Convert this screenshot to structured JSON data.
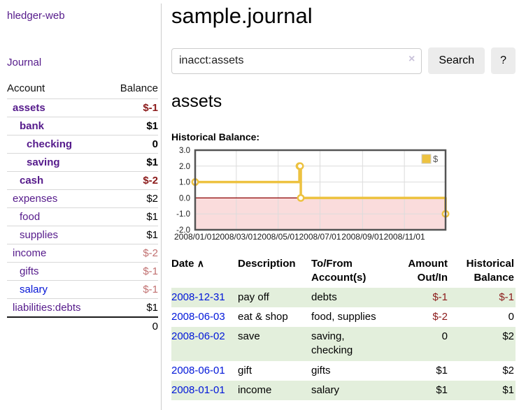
{
  "colors": {
    "link_purple": "#551a8b",
    "link_blue": "#0414d6",
    "date_link_blue": "#0016d9",
    "negative_strong": "#8b1a1a",
    "negative_dim": "#c17070",
    "row_green": "#e3efdc",
    "accent_gold": "#edc240",
    "button_gray": "#ececec"
  },
  "sidebar": {
    "app_title": "hledger-web",
    "nav": {
      "journal_label": "Journal"
    },
    "accounts_table": {
      "headers": {
        "account": "Account",
        "balance": "Balance"
      },
      "rows": [
        {
          "name": "assets",
          "indent": 1,
          "bold": true,
          "blue": false,
          "balance": "$-1",
          "balance_style": "neg-strong"
        },
        {
          "name": "bank",
          "indent": 2,
          "bold": true,
          "blue": false,
          "balance": "$1",
          "balance_style": "strong"
        },
        {
          "name": "checking",
          "indent": 3,
          "bold": true,
          "blue": false,
          "balance": "0",
          "balance_style": "strong"
        },
        {
          "name": "saving",
          "indent": 3,
          "bold": true,
          "blue": false,
          "balance": "$1",
          "balance_style": "strong"
        },
        {
          "name": "cash",
          "indent": 2,
          "bold": true,
          "blue": false,
          "balance": "$-2",
          "balance_style": "neg-strong"
        },
        {
          "name": "expenses",
          "indent": 1,
          "bold": false,
          "blue": false,
          "balance": "$2",
          "balance_style": "plain"
        },
        {
          "name": "food",
          "indent": 2,
          "bold": false,
          "blue": false,
          "balance": "$1",
          "balance_style": "plain"
        },
        {
          "name": "supplies",
          "indent": 2,
          "bold": false,
          "blue": false,
          "balance": "$1",
          "balance_style": "plain"
        },
        {
          "name": "income",
          "indent": 1,
          "bold": false,
          "blue": false,
          "balance": "$-2",
          "balance_style": "neg-dim"
        },
        {
          "name": "gifts",
          "indent": 2,
          "bold": false,
          "blue": false,
          "balance": "$-1",
          "balance_style": "neg-dim"
        },
        {
          "name": "salary",
          "indent": 2,
          "bold": false,
          "blue": true,
          "balance": "$-1",
          "balance_style": "neg-dim"
        },
        {
          "name": "liabilities:debts",
          "indent": 1,
          "bold": false,
          "blue": false,
          "balance": "$1",
          "balance_style": "plain"
        }
      ],
      "total": "0"
    }
  },
  "header": {
    "title": "sample.journal"
  },
  "search": {
    "value": "inacct:assets",
    "clear_icon": "×",
    "button_label": "Search",
    "help_label": "?"
  },
  "account_page": {
    "heading": "assets",
    "chart_label": "Historical Balance:"
  },
  "chart_data": {
    "type": "line",
    "step": true,
    "title": "Historical Balance",
    "legend": {
      "position": "top-right",
      "entries": [
        "$"
      ]
    },
    "xlim": [
      "2008-01-01",
      "2008-12-31"
    ],
    "ylim": [
      -2,
      3
    ],
    "x_ticks": [
      "2008/01/01",
      "2008/03/01",
      "2008/05/01",
      "2008/07/01",
      "2008/09/01",
      "2008/11/01"
    ],
    "y_ticks": [
      3.0,
      2.0,
      1.0,
      0.0,
      -1.0,
      -2.0
    ],
    "grid": true,
    "negative_fill": "#fadcdc",
    "zero_line_color": "#8b0000",
    "series": [
      {
        "name": "$",
        "color": "#edc240",
        "points": [
          [
            "2008-01-01",
            1
          ],
          [
            "2008-06-01",
            2
          ],
          [
            "2008-06-02",
            2
          ],
          [
            "2008-06-03",
            0
          ],
          [
            "2008-12-31",
            -1
          ]
        ]
      }
    ]
  },
  "register_table": {
    "headers": {
      "date": "Date",
      "sort_icon": "∧",
      "description": "Description",
      "accounts": "To/From Account(s)",
      "amount": "Amount Out/In",
      "balance": "Historical Balance"
    },
    "rows": [
      {
        "date": "2008-12-31",
        "description": "pay off",
        "accounts": "debts",
        "amount": "$-1",
        "amount_neg": true,
        "balance": "$-1",
        "balance_neg": true
      },
      {
        "date": "2008-06-03",
        "description": "eat & shop",
        "accounts": "food, supplies",
        "amount": "$-2",
        "amount_neg": true,
        "balance": "0",
        "balance_neg": false
      },
      {
        "date": "2008-06-02",
        "description": "save",
        "accounts": "saving, checking",
        "amount": "0",
        "amount_neg": false,
        "balance": "$2",
        "balance_neg": false
      },
      {
        "date": "2008-06-01",
        "description": "gift",
        "accounts": "gifts",
        "amount": "$1",
        "amount_neg": false,
        "balance": "$2",
        "balance_neg": false
      },
      {
        "date": "2008-01-01",
        "description": "income",
        "accounts": "salary",
        "amount": "$1",
        "amount_neg": false,
        "balance": "$1",
        "balance_neg": false
      }
    ]
  }
}
